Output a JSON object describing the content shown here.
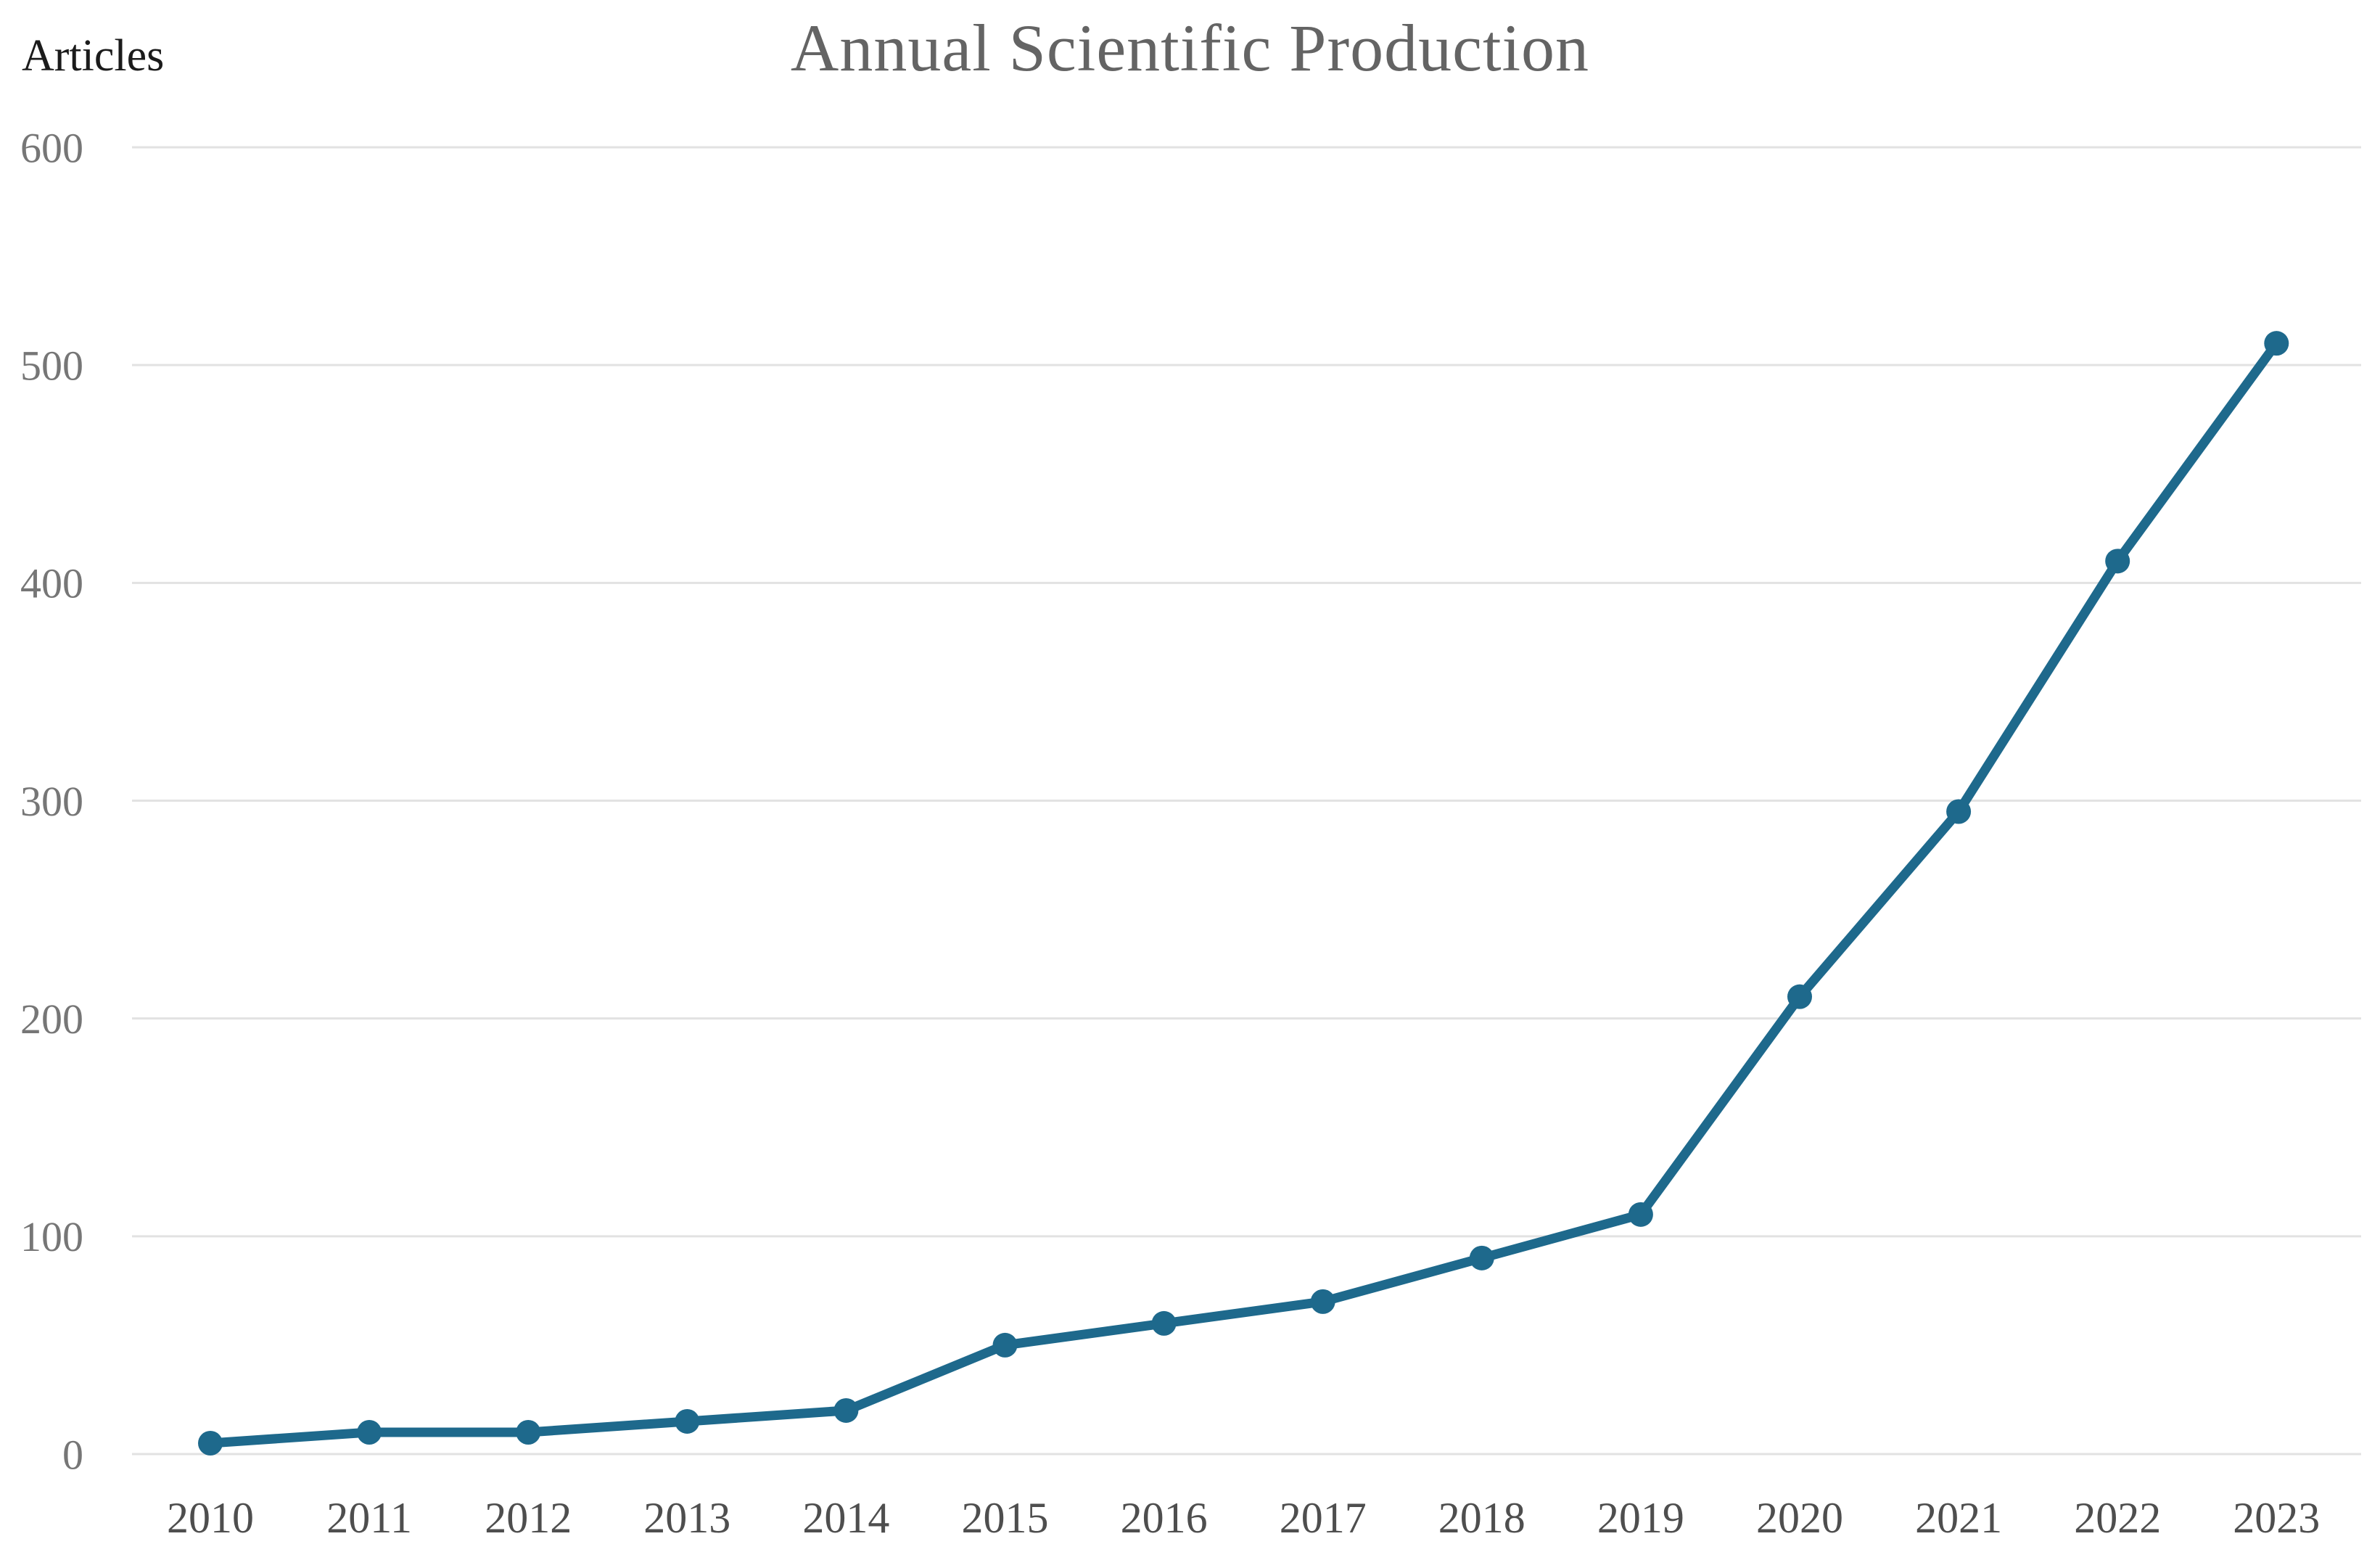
{
  "chart_data": {
    "type": "line",
    "title": "Annual Scientific Production",
    "ylabel": "Articles",
    "xlabel": "",
    "categories": [
      "2010",
      "2011",
      "2012",
      "2013",
      "2014",
      "2015",
      "2016",
      "2017",
      "2018",
      "2019",
      "2020",
      "2021",
      "2022",
      "2023"
    ],
    "series": [
      {
        "name": "Articles",
        "values": [
          5,
          10,
          10,
          15,
          20,
          50,
          60,
          70,
          90,
          110,
          210,
          295,
          410,
          510
        ]
      }
    ],
    "yticks": [
      0,
      100,
      200,
      300,
      400,
      500,
      600
    ],
    "ylim": [
      0,
      600
    ],
    "grid": "horizontal-only",
    "legend": "none",
    "marker": "filled-circle"
  },
  "colors": {
    "line": "#1e698c",
    "marker": "#1e698c",
    "gridline": "#e2e2e2",
    "title_text": "#646464",
    "ytick_text": "#767676",
    "xtick_text": "#4e4e4e",
    "ylabel_text": "#1b1b1b",
    "background": "#ffffff"
  }
}
